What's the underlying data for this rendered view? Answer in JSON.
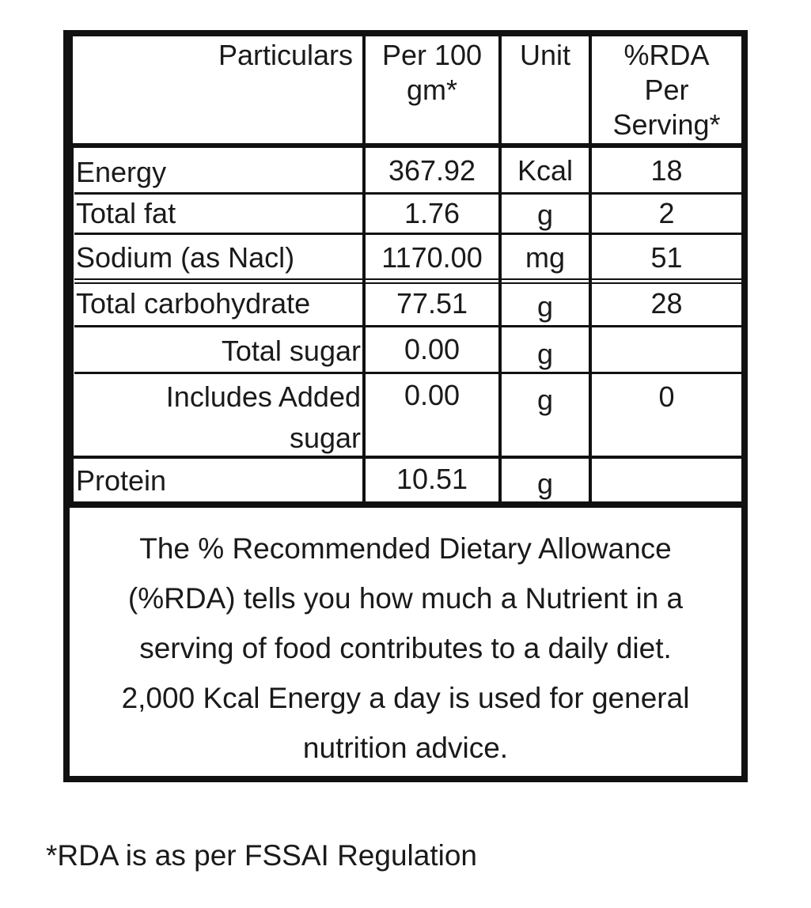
{
  "table": {
    "headers": {
      "particulars": "Particulars",
      "per100_line1": "Per 100",
      "per100_line2": "gm*",
      "unit": "Unit",
      "rda_line1": "%RDA",
      "rda_line2": "Per",
      "rda_line3": "Serving*"
    },
    "rows": [
      {
        "name": "Energy",
        "value": "367.92",
        "unit": "Kcal",
        "rda": "18"
      },
      {
        "name": "Total fat",
        "value": "1.76",
        "unit": "g",
        "rda": "2"
      },
      {
        "name": "Sodium (as Nacl)",
        "value": "1170.00",
        "unit": "mg",
        "rda": "51"
      },
      {
        "name": "Total carbohydrate",
        "value": "77.51",
        "unit": "g",
        "rda": "28"
      },
      {
        "name": "Total sugar",
        "value": "0.00",
        "unit": "g",
        "rda": ""
      },
      {
        "name_line1": "Includes Added",
        "name_line2": "sugar",
        "value": "0.00",
        "unit": "g",
        "rda": "0"
      },
      {
        "name": "Protein",
        "value": "10.51",
        "unit": "g",
        "rda": ""
      }
    ]
  },
  "note": {
    "line1": "The % Recommended Dietary Allowance",
    "line2": "(%RDA) tells you how much a Nutrient in a",
    "line3": "serving of food contributes to a daily diet.",
    "line4": "2,000 Kcal Energy a day is used for general",
    "line5": "nutrition advice."
  },
  "footnote": "*RDA is as per FSSAI Regulation"
}
